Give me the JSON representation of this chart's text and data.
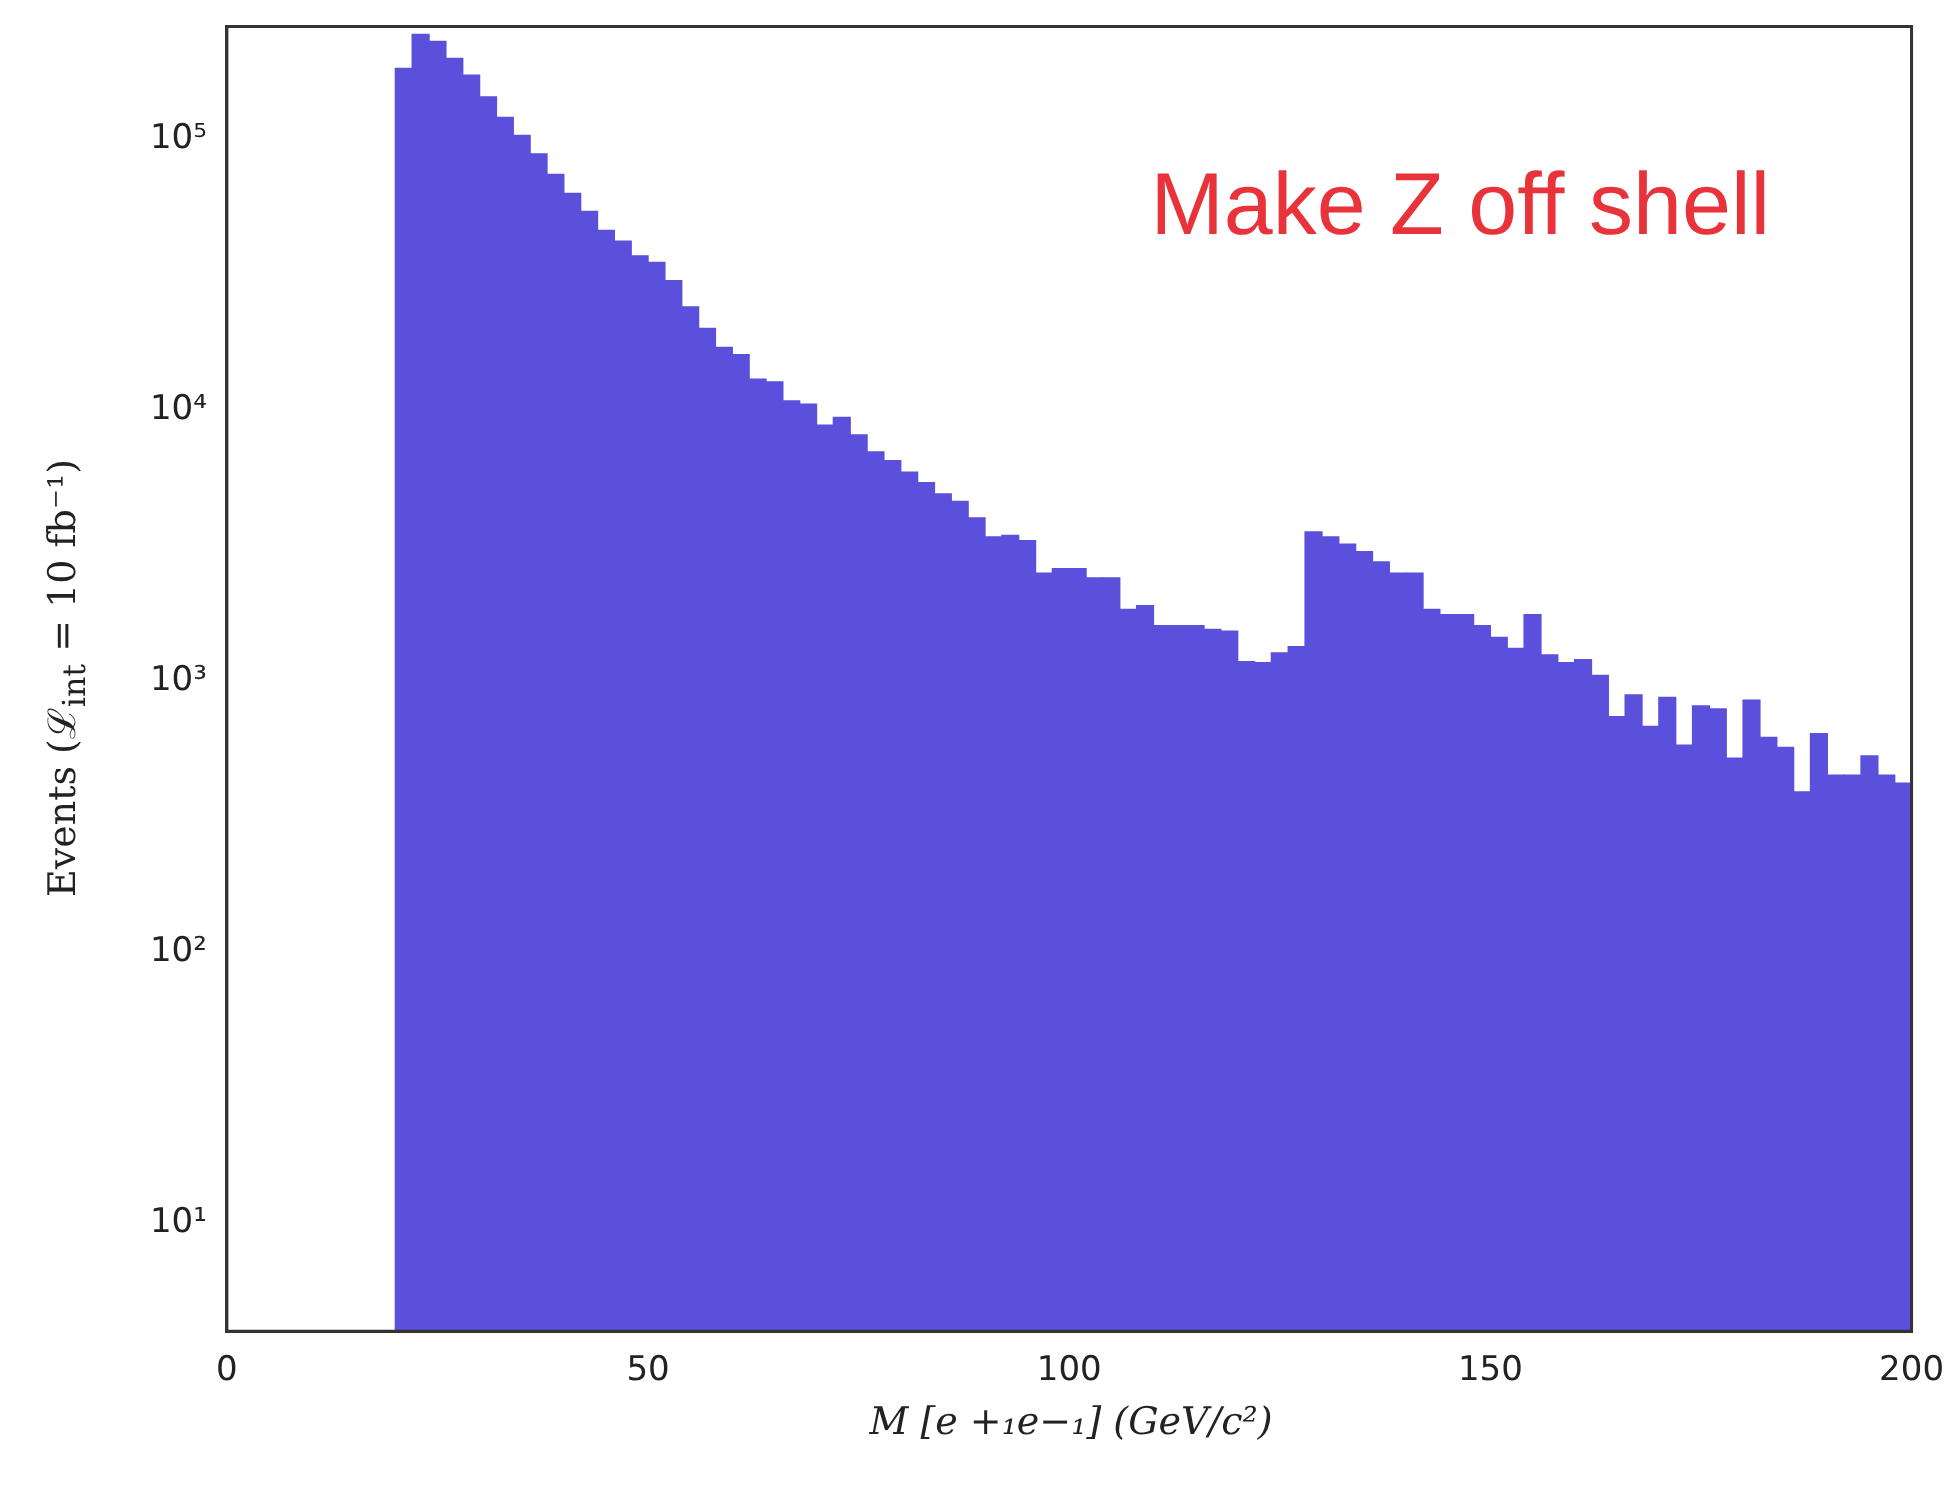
{
  "chart_data": {
    "type": "histogram",
    "xlabel": "M [e +₁e−₁] (GeV/c²)",
    "ylabel": "Events (ℒ$_{int}$ = 10 fb⁻¹)",
    "annotations": [
      "Make Z off shell"
    ],
    "bins": [
      20,
      22,
      24,
      26,
      28,
      30,
      32,
      34,
      36,
      38,
      40,
      42,
      44,
      46,
      48,
      50,
      52,
      54,
      56,
      58,
      60,
      62,
      64,
      66,
      68,
      70,
      72,
      74,
      76,
      78,
      80,
      82,
      84,
      86,
      88,
      90,
      92,
      94,
      96,
      98,
      100,
      102,
      104,
      106,
      108,
      110,
      112,
      114,
      116,
      118,
      120,
      122,
      124,
      126,
      128,
      130,
      132,
      134,
      136,
      138,
      140,
      142,
      144,
      146,
      148,
      150,
      152,
      154,
      156,
      158,
      160,
      162,
      164,
      166,
      168,
      170,
      172,
      174,
      176,
      178,
      180,
      182,
      184,
      186,
      188,
      190,
      192,
      194,
      196,
      198,
      200
    ],
    "values": [
      182000,
      243000,
      229000,
      198000,
      172000,
      143000,
      120000,
      103000,
      88000,
      74000,
      63000,
      54000,
      46000,
      42000,
      37000,
      35000,
      30000,
      24000,
      20000,
      17000,
      16000,
      13000,
      12700,
      10800,
      10500,
      8800,
      9400,
      8100,
      7000,
      6500,
      5900,
      5400,
      4900,
      4600,
      4000,
      3400,
      3450,
      3300,
      2500,
      2600,
      2600,
      2400,
      2400,
      1840,
      1900,
      1600,
      1600,
      1600,
      1550,
      1530,
      1180,
      1170,
      1270,
      1340,
      3550,
      3400,
      3200,
      3000,
      2750,
      2500,
      2500,
      1840,
      1760,
      1760,
      1600,
      1450,
      1320,
      1760,
      1250,
      1170,
      1200,
      1050,
      740,
      890,
      680,
      870,
      580,
      810,
      790,
      520,
      850,
      620,
      570,
      390,
      640,
      450,
      450,
      530,
      450,
      420
    ],
    "color": "#5b50dc",
    "log": "y",
    "xlim": [
      0,
      200
    ],
    "ylim": [
      4,
      260000
    ],
    "xticks": [
      0,
      50,
      100,
      150,
      200
    ],
    "yticks": [
      {
        "value": 10,
        "label": "10¹"
      },
      {
        "value": 100,
        "label": "10²"
      },
      {
        "value": 1000,
        "label": "10³"
      },
      {
        "value": 10000,
        "label": "10⁴"
      },
      {
        "value": 100000,
        "label": "10⁵"
      }
    ]
  }
}
